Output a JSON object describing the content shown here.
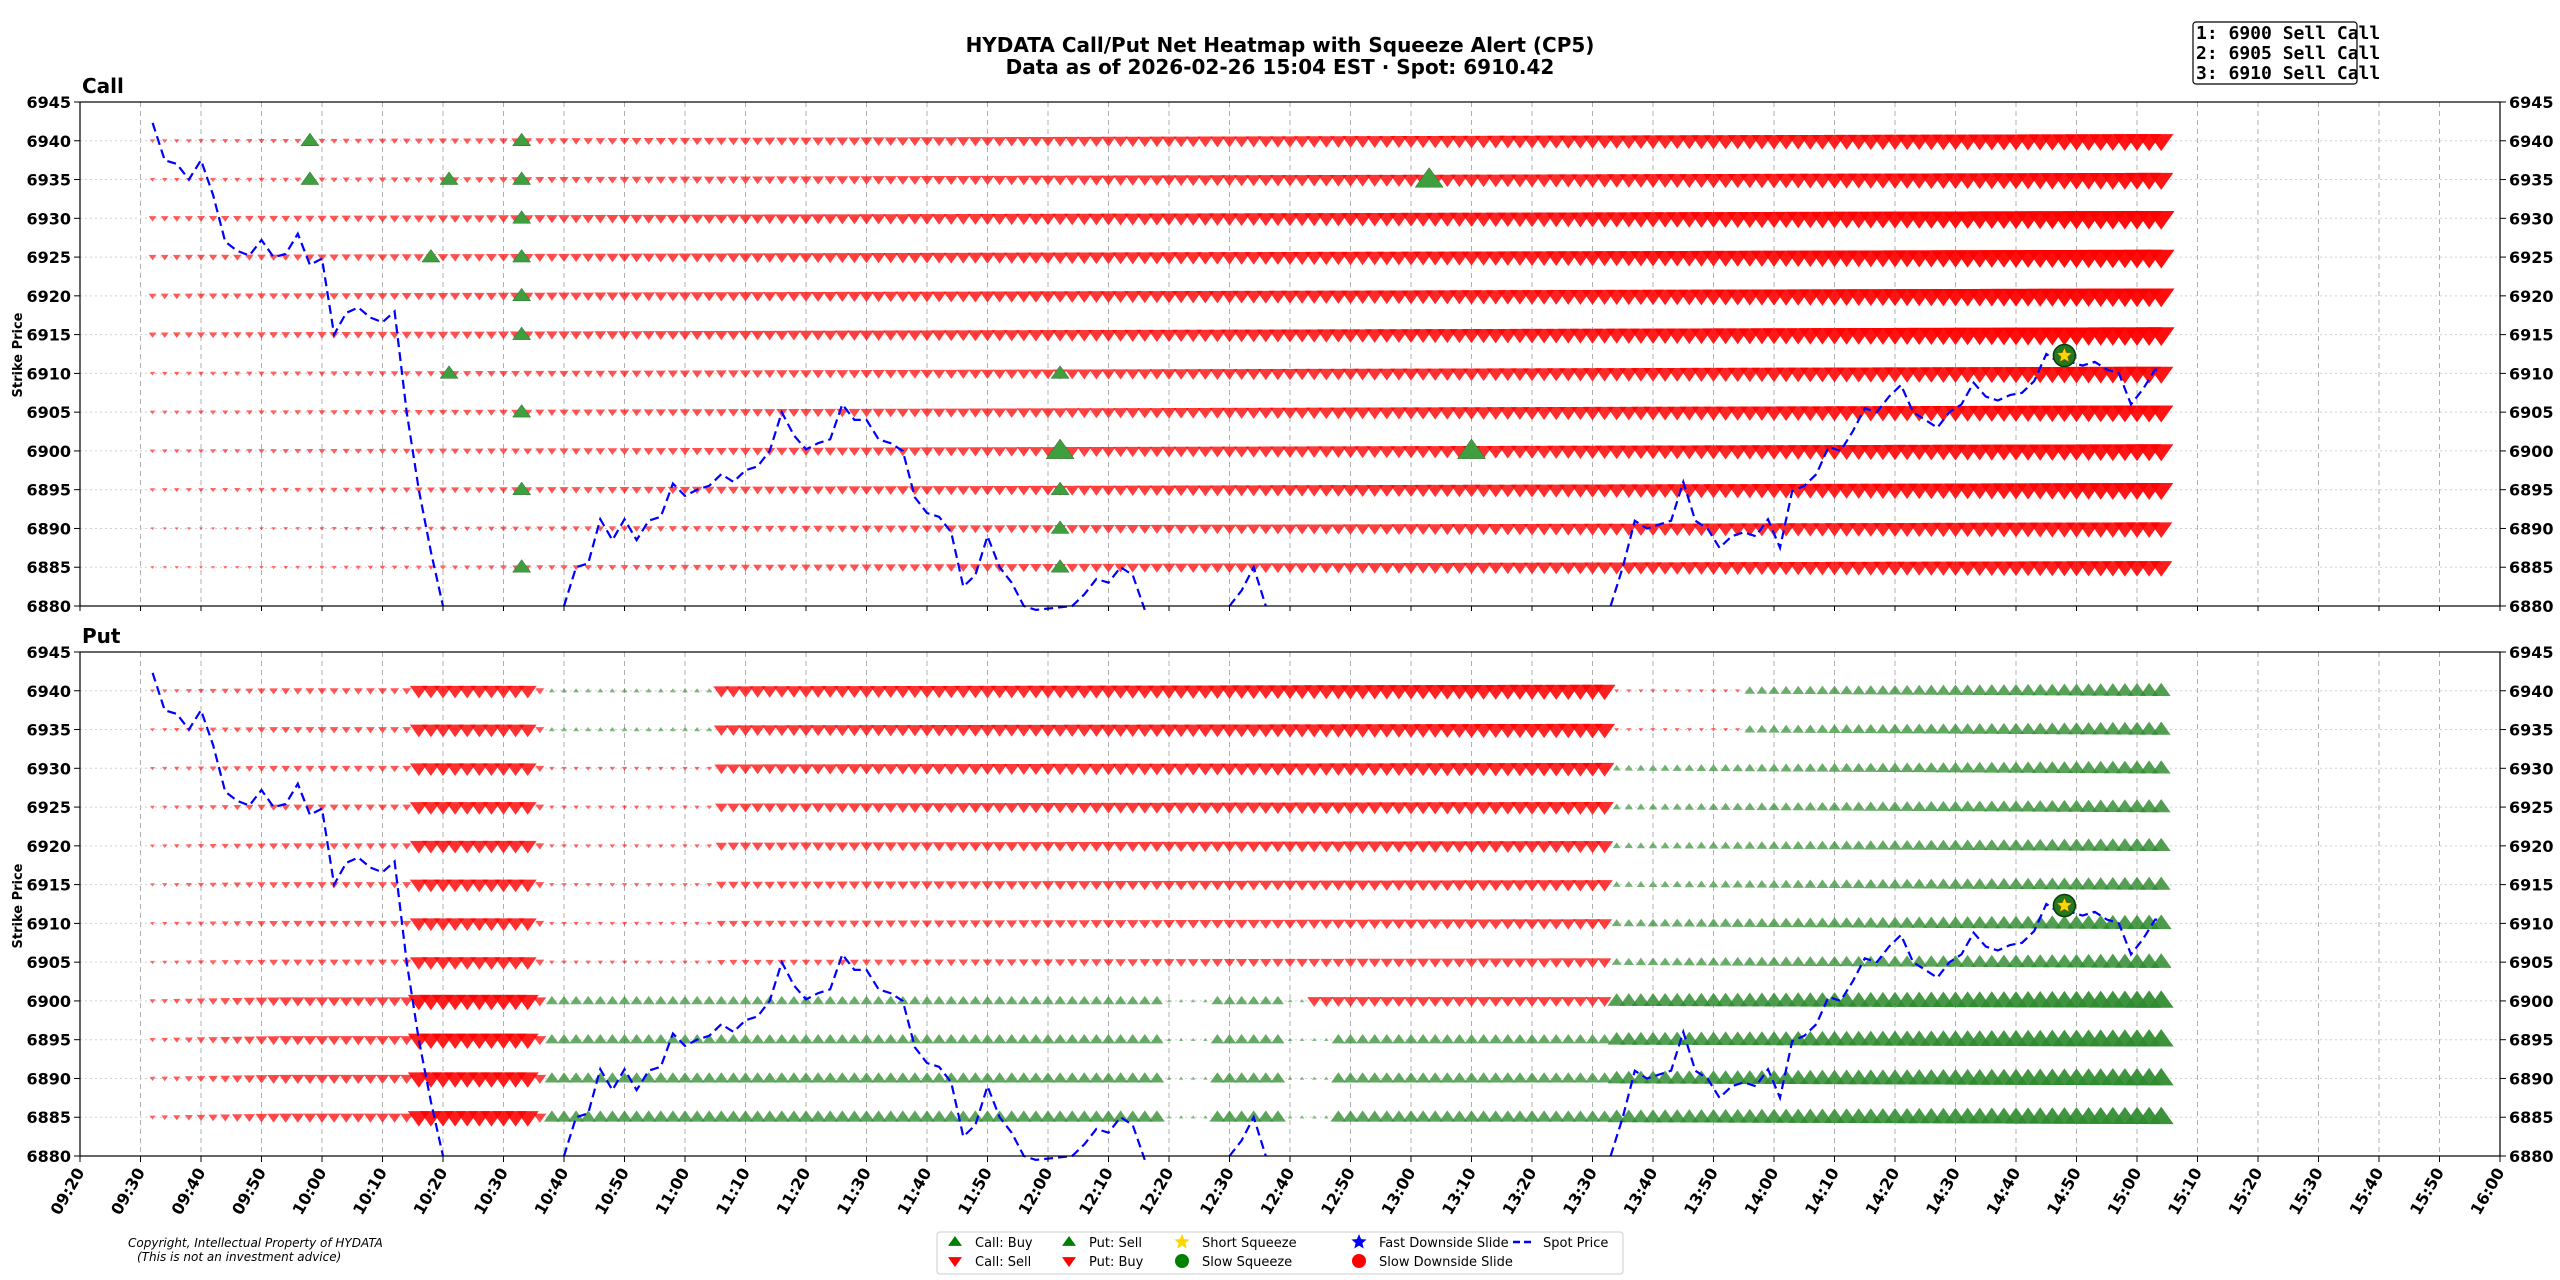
{
  "header": {
    "title_line1": "HYDATA Call/Put Net Heatmap with Squeeze Alert (CP5)",
    "title_line2": "Data as of 2026-02-26 15:04 EST · Spot: 6910.42"
  },
  "alerts": [
    "1: 6900 Sell Call",
    "2: 6905 Sell Call",
    "3: 6910 Sell Call"
  ],
  "copyright": [
    "Copyright, Intellectual Property of HYDATA",
    "(This is not an investment advice)"
  ],
  "legend": [
    {
      "label": "Call: Buy",
      "marker": "triangle-up",
      "color": "#008000"
    },
    {
      "label": "Call: Sell",
      "marker": "triangle-down",
      "color": "#ff0000"
    },
    {
      "label": "Put: Sell",
      "marker": "triangle-up",
      "color": "#008000"
    },
    {
      "label": "Put: Buy",
      "marker": "triangle-down",
      "color": "#ff0000"
    },
    {
      "label": "Short Squeeze",
      "marker": "star",
      "color": "#ffd700"
    },
    {
      "label": "Slow Squeeze",
      "marker": "circle",
      "color": "#008000"
    },
    {
      "label": "Fast Downside Slide",
      "marker": "star",
      "color": "#0000ff"
    },
    {
      "label": "Slow Downside Slide",
      "marker": "circle",
      "color": "#ff0000"
    },
    {
      "label": "Spot Price",
      "marker": "dashed-line",
      "color": "#0000ff"
    }
  ],
  "colors": {
    "buy_green": "#2e8b2e",
    "sell_red": "#ff0000",
    "spot_blue": "#0000ff",
    "squeeze_star": "#ffd700"
  },
  "chart_data": [
    {
      "type": "heatmap",
      "panel": "Call",
      "title": "Call",
      "ylabel": "Strike Price",
      "ylim": [
        6880,
        6945
      ],
      "yticks": [
        6945,
        6940,
        6935,
        6930,
        6925,
        6920,
        6915,
        6910,
        6905,
        6900,
        6895,
        6890,
        6885,
        6880
      ],
      "strikes": [
        6940,
        6935,
        6930,
        6925,
        6920,
        6915,
        6910,
        6905,
        6900,
        6895,
        6890,
        6885
      ],
      "net_flow_summary": "net selling (red) dominates every strike, growing from 09:32 to 15:05; sparse buy markers",
      "buy_markers": [
        {
          "time": "09:58",
          "strike": 6940
        },
        {
          "time": "09:58",
          "strike": 6935
        },
        {
          "time": "10:18",
          "strike": 6925
        },
        {
          "time": "10:21",
          "strike": 6935
        },
        {
          "time": "10:21",
          "strike": 6910
        },
        {
          "time": "10:33",
          "strike": 6940
        },
        {
          "time": "10:33",
          "strike": 6935
        },
        {
          "time": "10:33",
          "strike": 6930
        },
        {
          "time": "10:33",
          "strike": 6925
        },
        {
          "time": "10:33",
          "strike": 6920
        },
        {
          "time": "10:33",
          "strike": 6915
        },
        {
          "time": "10:33",
          "strike": 6905
        },
        {
          "time": "10:33",
          "strike": 6895
        },
        {
          "time": "10:33",
          "strike": 6885
        },
        {
          "time": "12:02",
          "strike": 6910
        },
        {
          "time": "12:02",
          "strike": 6900
        },
        {
          "time": "12:02",
          "strike": 6895
        },
        {
          "time": "12:02",
          "strike": 6890
        },
        {
          "time": "12:02",
          "strike": 6885
        },
        {
          "time": "13:03",
          "strike": 6935
        },
        {
          "time": "13:10",
          "strike": 6900
        }
      ],
      "squeeze_markers": [
        {
          "time": "14:48",
          "price": 6912.3,
          "type": "Short Squeeze"
        }
      ]
    },
    {
      "type": "heatmap",
      "panel": "Put",
      "title": "Put",
      "ylabel": "Strike Price",
      "ylim": [
        6880,
        6945
      ],
      "yticks": [
        6945,
        6940,
        6935,
        6930,
        6925,
        6920,
        6915,
        6910,
        6905,
        6900,
        6895,
        6890,
        6885,
        6880
      ],
      "strikes": [
        6940,
        6935,
        6930,
        6925,
        6920,
        6915,
        6910,
        6905,
        6900,
        6895,
        6890,
        6885
      ],
      "net_flow_summary": "red (Put: Buy) in morning and midday at upper strikes, green (Put: Sell) at lower strikes and across all strikes after 13:35",
      "squeeze_markers": [
        {
          "time": "14:48",
          "price": 6912.3,
          "type": "Short Squeeze"
        }
      ]
    }
  ],
  "spot_price": {
    "times": [
      "09:32",
      "09:34",
      "09:36",
      "09:38",
      "09:40",
      "09:42",
      "09:44",
      "09:46",
      "09:48",
      "09:50",
      "09:52",
      "09:54",
      "09:56",
      "09:58",
      "10:00",
      "10:02",
      "10:04",
      "10:06",
      "10:08",
      "10:10",
      "10:12",
      "10:14",
      "10:16",
      "10:18",
      "10:20",
      "10:40",
      "10:42",
      "10:44",
      "10:46",
      "10:48",
      "10:50",
      "10:52",
      "10:54",
      "10:56",
      "10:58",
      "11:00",
      "11:02",
      "11:04",
      "11:06",
      "11:08",
      "11:10",
      "11:12",
      "11:14",
      "11:16",
      "11:18",
      "11:20",
      "11:22",
      "11:24",
      "11:26",
      "11:28",
      "11:30",
      "11:32",
      "11:34",
      "11:36",
      "11:38",
      "11:40",
      "11:42",
      "11:44",
      "11:46",
      "11:48",
      "11:50",
      "11:52",
      "11:54",
      "11:56",
      "11:58",
      "12:04",
      "12:06",
      "12:08",
      "12:10",
      "12:12",
      "12:14",
      "12:16",
      "12:30",
      "12:32",
      "12:34",
      "12:36",
      "13:33",
      "13:35",
      "13:37",
      "13:39",
      "13:41",
      "13:43",
      "13:45",
      "13:47",
      "13:49",
      "13:51",
      "13:53",
      "13:55",
      "13:57",
      "13:59",
      "14:01",
      "14:03",
      "14:05",
      "14:07",
      "14:09",
      "14:11",
      "14:13",
      "14:15",
      "14:17",
      "14:19",
      "14:21",
      "14:23",
      "14:25",
      "14:27",
      "14:29",
      "14:31",
      "14:33",
      "14:35",
      "14:37",
      "14:39",
      "14:41",
      "14:43",
      "14:45",
      "14:47",
      "14:49",
      "14:51",
      "14:53",
      "14:55",
      "14:57",
      "14:59",
      "15:01",
      "15:03",
      "15:04"
    ],
    "prices": [
      6942.3,
      6937.5,
      6937.0,
      6935.0,
      6937.5,
      6933.0,
      6927.0,
      6925.8,
      6925.2,
      6927.2,
      6925.0,
      6925.4,
      6928.0,
      6924.0,
      6924.8,
      6915.0,
      6917.8,
      6918.5,
      6917.2,
      6916.6,
      6918.0,
      6905.0,
      6895.0,
      6887.0,
      6880.0,
      6880.0,
      6885.0,
      6885.5,
      6891.2,
      6888.5,
      6891.2,
      6888.5,
      6891.0,
      6891.5,
      6895.8,
      6894.2,
      6895.0,
      6895.5,
      6897.0,
      6896.0,
      6897.5,
      6898.0,
      6900.0,
      6905.0,
      6902.0,
      6900.2,
      6901.0,
      6901.5,
      6906.0,
      6904.0,
      6904.0,
      6901.5,
      6901.0,
      6900.0,
      6894.0,
      6892.0,
      6891.5,
      6889.5,
      6882.5,
      6884.0,
      6889.0,
      6885.0,
      6883.0,
      6880.0,
      6879.0,
      6880.0,
      6881.5,
      6883.5,
      6883.0,
      6885.0,
      6884.0,
      6879.0,
      6880.0,
      6882.0,
      6885.0,
      6880.0,
      6880.0,
      6885.0,
      6891.0,
      6890.0,
      6890.5,
      6891.0,
      6896.0,
      6891.0,
      6890.0,
      6887.5,
      6889.0,
      6889.5,
      6889.0,
      6891.2,
      6887.5,
      6894.8,
      6895.5,
      6897.0,
      6900.5,
      6900.0,
      6902.5,
      6905.5,
      6905.0,
      6907.0,
      6908.5,
      6905.0,
      6904.0,
      6903.0,
      6905.0,
      6906.0,
      6908.8,
      6907.0,
      6906.5,
      6907.2,
      6907.5,
      6909.0,
      6912.5,
      6911.5,
      6911.5,
      6911.0,
      6911.5,
      6910.5,
      6910.0,
      6906.0,
      6908.0,
      6910.5,
      6910.4
    ]
  },
  "axis": {
    "x_ticks": [
      "09:20",
      "09:30",
      "09:40",
      "09:50",
      "10:00",
      "10:10",
      "10:20",
      "10:30",
      "10:40",
      "10:50",
      "11:00",
      "11:10",
      "11:20",
      "11:30",
      "11:40",
      "11:50",
      "12:00",
      "12:10",
      "12:20",
      "12:30",
      "12:40",
      "12:50",
      "13:00",
      "13:10",
      "13:20",
      "13:30",
      "13:40",
      "13:50",
      "14:00",
      "14:10",
      "14:20",
      "14:30",
      "14:40",
      "14:50",
      "15:00",
      "15:10",
      "15:20",
      "15:30",
      "15:40",
      "15:50",
      "16:00"
    ],
    "x_range_minutes": [
      560,
      960
    ]
  }
}
